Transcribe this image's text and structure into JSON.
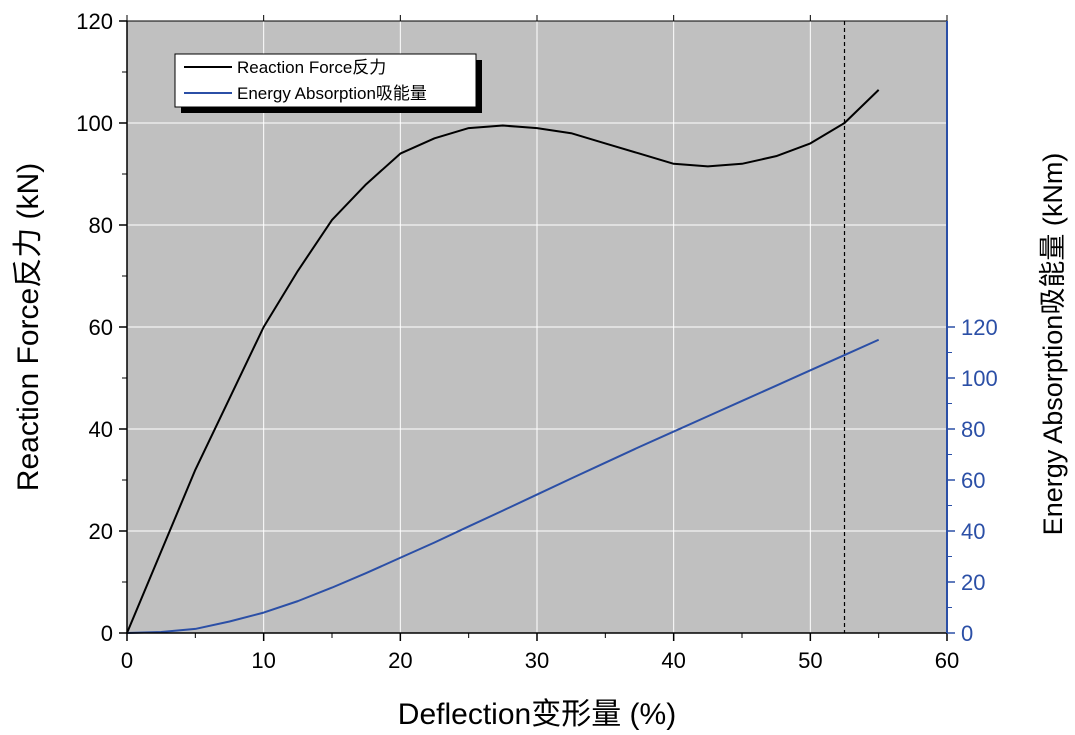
{
  "chart_data": {
    "type": "line",
    "title": "",
    "xlabel": "Deflection变形量 (%)",
    "ylabel_left": "Reaction Force反力 (kN)",
    "ylabel_right": "Energy Absorption吸能量 (kNm)",
    "xlim": [
      0,
      60
    ],
    "ylim_left": [
      0,
      120
    ],
    "ylim_right": [
      0,
      240
    ],
    "x_ticks": [
      0,
      10,
      20,
      30,
      40,
      50,
      60
    ],
    "y_left_ticks": [
      0,
      20,
      40,
      60,
      80,
      100,
      120
    ],
    "y_right_ticks": [
      0,
      20,
      40,
      60,
      80,
      100,
      120
    ],
    "grid": true,
    "legend_position": "top-left",
    "reference_line_x": 52.5,
    "colors": {
      "background_plot": "#c0c0c0",
      "grid": "#ffffff",
      "reaction_force": "#000000",
      "energy_absorption": "#2b4fa6",
      "right_axis": "#2b4fa6"
    },
    "series": [
      {
        "name": "Reaction Force反力",
        "axis": "left",
        "x": [
          0,
          2.5,
          5,
          7.5,
          10,
          12.5,
          15,
          17.5,
          20,
          22.5,
          25,
          27.5,
          30,
          32.5,
          35,
          37.5,
          40,
          42.5,
          45,
          47.5,
          50,
          52.5,
          55
        ],
        "values": [
          0,
          16,
          32,
          46,
          60,
          71,
          81,
          88,
          94,
          97,
          99,
          99.5,
          99,
          98,
          96,
          94,
          92,
          91.5,
          92,
          93.5,
          96,
          100,
          106.5
        ]
      },
      {
        "name": "Energy Absorption吸能量",
        "axis": "right",
        "x": [
          0,
          2.5,
          5,
          7.5,
          10,
          12.5,
          15,
          17.5,
          20,
          22.5,
          25,
          27.5,
          30,
          32.5,
          35,
          37.5,
          40,
          42.5,
          45,
          47.5,
          50,
          52.5,
          55
        ],
        "values": [
          0,
          0.4,
          1.6,
          4.5,
          8,
          12.5,
          17.8,
          23.5,
          29.5,
          35.5,
          41.8,
          48,
          54.3,
          60.6,
          66.8,
          73,
          79,
          85,
          91,
          97,
          103,
          109,
          115
        ]
      }
    ]
  }
}
